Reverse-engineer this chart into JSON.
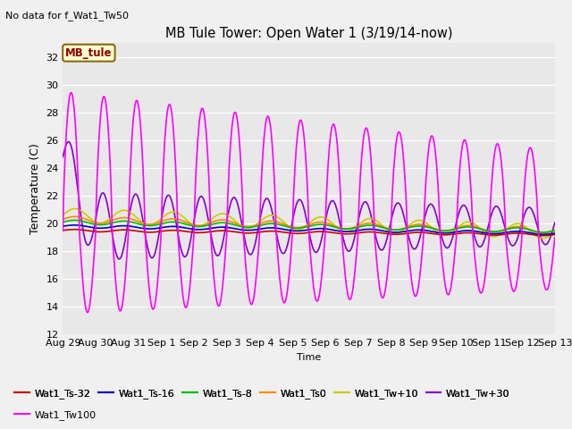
{
  "title": "MB Tule Tower: Open Water 1 (3/19/14-now)",
  "subtitle": "No data for f_Wat1_Tw50",
  "ylabel": "Temperature (C)",
  "xlabel": "Time",
  "ylim": [
    12,
    33
  ],
  "yticks": [
    12,
    14,
    16,
    18,
    20,
    22,
    24,
    26,
    28,
    30,
    32
  ],
  "xtick_labels": [
    "Aug 29",
    "Aug 30",
    "Aug 31",
    "Sep 1",
    "Sep 2",
    "Sep 3",
    "Sep 4",
    "Sep 5",
    "Sep 6",
    "Sep 7",
    "Sep 8",
    "Sep 9",
    "Sep 10",
    "Sep 11",
    "Sep 12",
    "Sep 13"
  ],
  "bg_color": "#e8e8e8",
  "fig_bg": "#f0f0f0",
  "series": {
    "Wat1_Ts32": {
      "color": "#cc0000",
      "lw": 1.2
    },
    "Wat1_Ts16": {
      "color": "#0000cc",
      "lw": 1.2
    },
    "Wat1_Ts8": {
      "color": "#00bb00",
      "lw": 1.2
    },
    "Wat1_Ts0": {
      "color": "#ff8800",
      "lw": 1.2
    },
    "Wat1_Tw10": {
      "color": "#cccc00",
      "lw": 1.2
    },
    "Wat1_Tw30": {
      "color": "#8800cc",
      "lw": 1.2
    },
    "Wat1_Tw100": {
      "color": "#ff00ff",
      "lw": 1.2
    }
  },
  "legend_entries": [
    [
      "Wat1_Ts-32",
      "#cc0000"
    ],
    [
      "Wat1_Ts-16",
      "#0000cc"
    ],
    [
      "Wat1_Ts-8",
      "#00bb00"
    ],
    [
      "Wat1_Ts0",
      "#ff8800"
    ],
    [
      "Wat1_Tw+10",
      "#cccc00"
    ],
    [
      "Wat1_Tw+30",
      "#8800cc"
    ],
    [
      "Wat1_Tw100",
      "#ff00ff"
    ]
  ]
}
